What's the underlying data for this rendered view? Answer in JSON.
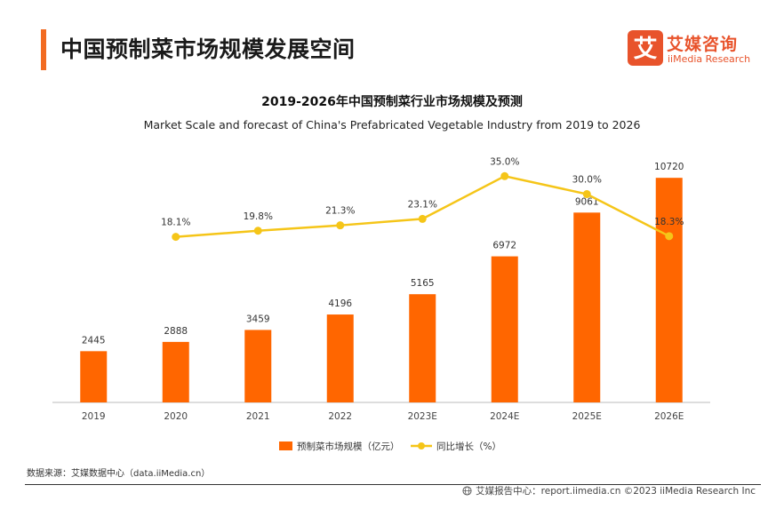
{
  "header": {
    "title": "中国预制菜市场规模发展空间",
    "accent_color": "#f26b21"
  },
  "logo": {
    "name_cn": "艾媒咨询",
    "name_en": "iiMedia Research",
    "mark_glyph": "艾",
    "color": "#e8532b"
  },
  "chart_data": {
    "type": "bar",
    "title": "2019-2026年中国预制菜行业市场规模及预测",
    "subtitle": "Market Scale and forecast of China's Prefabricated Vegetable Industry from 2019 to 2026",
    "categories": [
      "2019",
      "2020",
      "2021",
      "2022",
      "2023E",
      "2024E",
      "2025E",
      "2026E"
    ],
    "series": [
      {
        "name": "预制菜市场规模（亿元）",
        "type": "bar",
        "color": "#ff6600",
        "values": [
          2445,
          2888,
          3459,
          4196,
          5165,
          6972,
          9061,
          10720
        ],
        "labels": [
          "2445",
          "2888",
          "3459",
          "4196",
          "5165",
          "6972",
          "9061",
          "10720"
        ]
      },
      {
        "name": "同比增长（%）",
        "type": "line",
        "color": "#f5c518",
        "values": [
          null,
          18.1,
          19.8,
          21.3,
          23.1,
          35.0,
          30.0,
          18.3
        ],
        "labels": [
          "",
          "18.1%",
          "19.8%",
          "21.3%",
          "23.1%",
          "35.0%",
          "30.0%",
          "18.3%"
        ]
      }
    ],
    "ylim_bar": [
      0,
      12000
    ],
    "ylim_line": [
      -28,
      42
    ],
    "grid": false,
    "legend_position": "bottom-center"
  },
  "source": "数据来源：艾媒数据中心（data.iiMedia.cn）",
  "footer": "艾媒报告中心：report.iimedia.cn  ©2023  iiMedia Research  Inc"
}
